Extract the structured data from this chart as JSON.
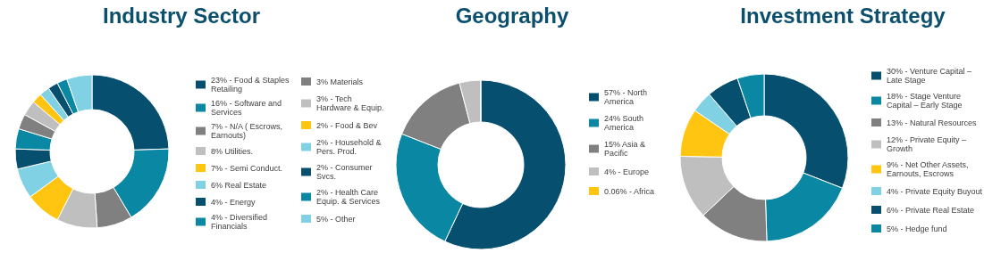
{
  "chart_data": [
    {
      "type": "donut",
      "title": "Industry Sector",
      "legend": "right",
      "categories": [
        "23% - Food & Staples Retailing",
        "16% - Software and Services",
        "7% - N/A ( Escrows, Earnouts)",
        "8% Utilities.",
        "7% - Semi Conduct.",
        "6% Real Estate",
        "4% - Energy",
        "4% - Diversified Financials",
        "3% Materials",
        "3% - Tech Hardware & Equip.",
        "2% - Food & Bev",
        "2% - Household & Pers. Prod.",
        "2% - Consumer Svcs.",
        "2% - Health Care Equip. & Services",
        "5% - Other"
      ],
      "values": [
        23,
        16,
        7,
        8,
        7,
        6,
        4,
        4,
        3,
        3,
        2,
        2,
        2,
        2,
        5
      ],
      "colors": [
        "#064f6e",
        "#0a87a3",
        "#808080",
        "#bfbfbf",
        "#ffc510",
        "#7fd1e3",
        "#064f6e",
        "#0a87a3",
        "#808080",
        "#bfbfbf",
        "#ffc510",
        "#7fd1e3",
        "#064f6e",
        "#0a87a3",
        "#7fd1e3"
      ]
    },
    {
      "type": "donut",
      "title": "Geography",
      "legend": "right",
      "categories": [
        "57% - North America",
        "24% South America",
        "15% Asia & Pacific",
        "4% - Europe",
        "0.06% - Africa"
      ],
      "values": [
        57,
        24,
        15,
        4,
        0.06
      ],
      "colors": [
        "#064f6e",
        "#0a87a3",
        "#808080",
        "#bfbfbf",
        "#ffc510"
      ]
    },
    {
      "type": "donut",
      "title": "Investment Strategy",
      "legend": "right",
      "categories": [
        "30% - Venture Capital – Late Stage",
        "18% - Stage Venture Capital – Early Stage",
        "13% - Natural Resources",
        "12% - Private Equity – Growth",
        "9% - Net Other Assets, Earnouts, Escrows",
        "4% - Private Equity Buyout",
        "6% - Private Real Estate",
        "5% - Hedge fund"
      ],
      "values": [
        30,
        18,
        13,
        12,
        9,
        4,
        6,
        5
      ],
      "colors": [
        "#064f6e",
        "#0a87a3",
        "#808080",
        "#bfbfbf",
        "#ffc510",
        "#7fd1e3",
        "#064f6e",
        "#0a87a3"
      ]
    }
  ]
}
